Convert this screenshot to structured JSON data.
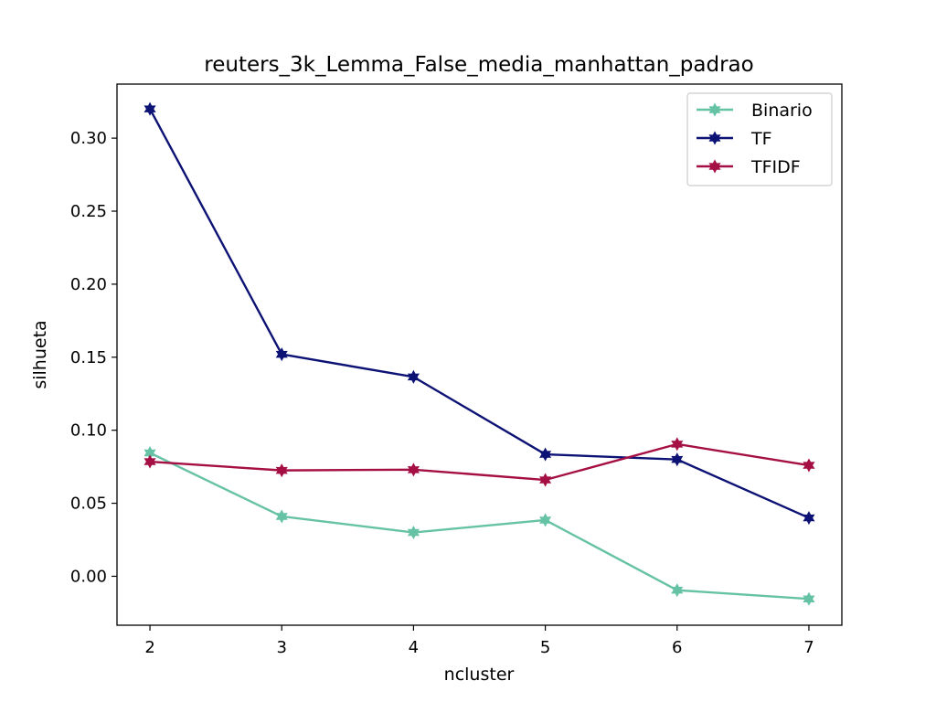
{
  "chart_data": {
    "type": "line",
    "title": "reuters_3k_Lemma_False_media_manhattan_padrao",
    "xlabel": "ncluster",
    "ylabel": "silhueta",
    "x": [
      2,
      3,
      4,
      5,
      6,
      7
    ],
    "xlim": [
      1.75,
      7.25
    ],
    "ylim": [
      -0.0335,
      0.337
    ],
    "xticks": [
      "2",
      "3",
      "4",
      "5",
      "6",
      "7"
    ],
    "yticks": [
      "0.00",
      "0.05",
      "0.10",
      "0.15",
      "0.20",
      "0.25",
      "0.30"
    ],
    "grid": false,
    "legend_position": "top-right",
    "marker": "star",
    "series": [
      {
        "name": "Binario",
        "color": "#66c2a5",
        "values": [
          0.0845,
          0.041,
          0.03,
          0.0385,
          -0.0095,
          -0.0155
        ]
      },
      {
        "name": "TF",
        "color": "#0d1275",
        "values": [
          0.32,
          0.152,
          0.1365,
          0.0835,
          0.08,
          0.04
        ]
      },
      {
        "name": "TFIDF",
        "color": "#a50f44",
        "values": [
          0.0785,
          0.0725,
          0.073,
          0.066,
          0.0905,
          0.076
        ]
      }
    ]
  }
}
